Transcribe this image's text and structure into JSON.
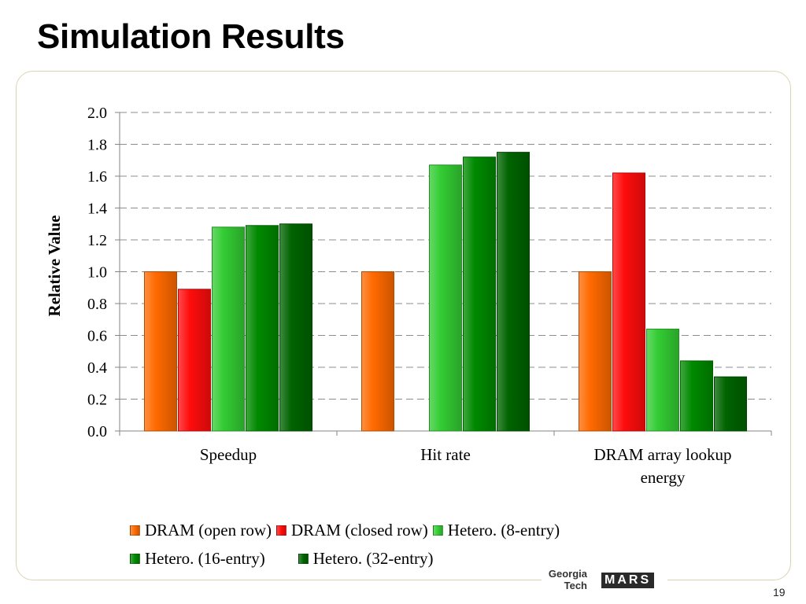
{
  "slide": {
    "title": "Simulation Results",
    "page_number": "19"
  },
  "logo": {
    "line1": "Georgia",
    "line2": "Tech",
    "mark": "MARS"
  },
  "chart_data": {
    "type": "bar",
    "ylabel": "Relative Value",
    "ylim": [
      0,
      2.0
    ],
    "yticks": [
      "0.0",
      "0.2",
      "0.4",
      "0.6",
      "0.8",
      "1.0",
      "1.2",
      "1.4",
      "1.6",
      "1.8",
      "2.0"
    ],
    "grid": true,
    "legend_position": "bottom",
    "categories": [
      "Speedup",
      "Hit rate",
      "DRAM array lookup energy"
    ],
    "category_lines": [
      [
        "Speedup"
      ],
      [
        "Hit rate"
      ],
      [
        "DRAM array lookup",
        "energy"
      ]
    ],
    "series": [
      {
        "name": "DRAM (open row)",
        "values": [
          1.0,
          1.0,
          1.0
        ],
        "color": "#ff6a00"
      },
      {
        "name": "DRAM (closed row)",
        "values": [
          0.89,
          null,
          1.62
        ],
        "color": "#ff0d0d"
      },
      {
        "name": "Hetero. (8-entry)",
        "values": [
          1.28,
          1.67,
          0.64
        ],
        "color": "#33cc33"
      },
      {
        "name": "Hetero. (16-entry)",
        "values": [
          1.29,
          1.72,
          0.44
        ],
        "color": "#008a00"
      },
      {
        "name": "Hetero. (32-entry)",
        "values": [
          1.3,
          1.75,
          0.34
        ],
        "color": "#006400"
      }
    ]
  }
}
